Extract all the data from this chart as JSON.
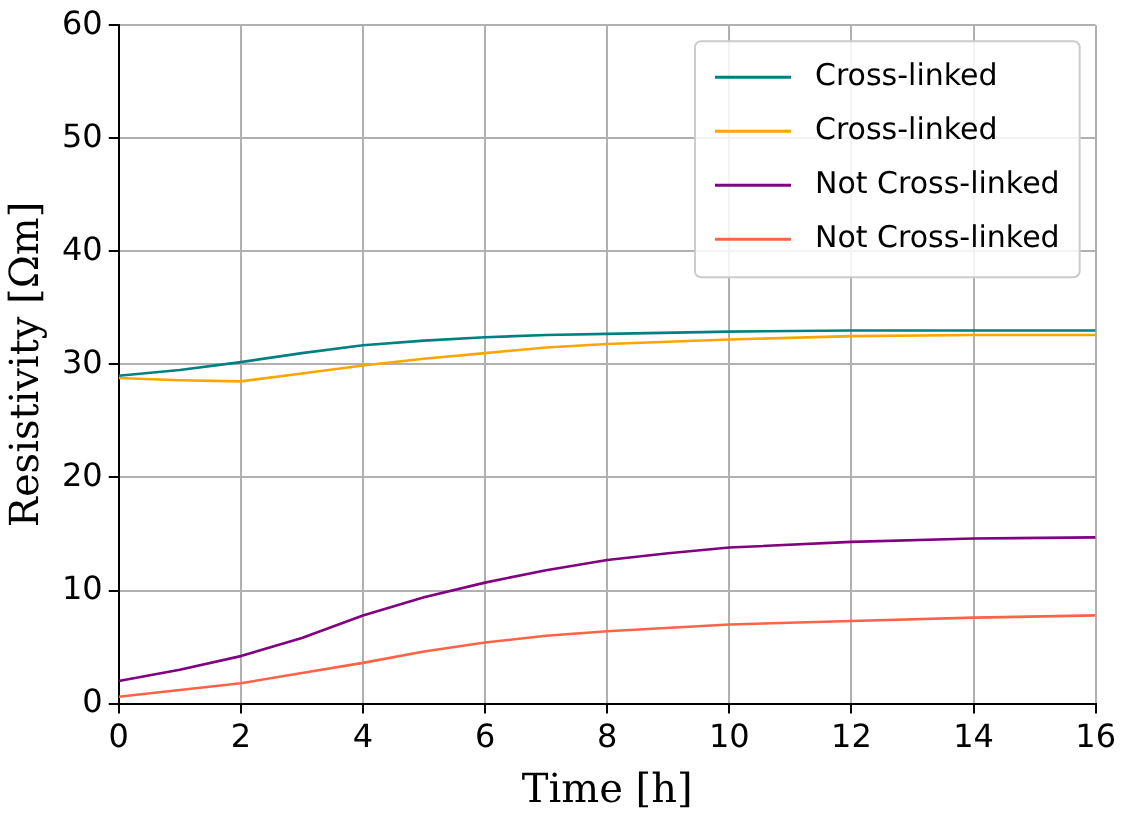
{
  "chart_data": {
    "type": "line",
    "xlabel": "Time [h]",
    "ylabel": "Resistivity [Ωm]",
    "xlim": [
      0,
      16
    ],
    "xticks": [
      0,
      2,
      4,
      6,
      8,
      10,
      12,
      14,
      16
    ],
    "ylim": [
      0,
      60
    ],
    "yticks": [
      0,
      10,
      20,
      30,
      40,
      50,
      60
    ],
    "grid": true,
    "legend": "top right",
    "marker": "none",
    "series": [
      {
        "name": "Cross-linked",
        "color": "#008080",
        "x": [
          0,
          1,
          2,
          3,
          4,
          5,
          6,
          7,
          8,
          10,
          12,
          14,
          16
        ],
        "values": [
          29,
          29.5,
          30.2,
          31,
          31.7,
          32.1,
          32.4,
          32.6,
          32.7,
          32.9,
          33,
          33,
          33
        ]
      },
      {
        "name": "Cross-linked",
        "color": "#ffa500",
        "x": [
          0,
          1,
          2,
          3,
          4,
          5,
          6,
          7,
          8,
          10,
          12,
          14,
          16
        ],
        "values": [
          28.8,
          28.6,
          28.5,
          29.2,
          29.9,
          30.5,
          31,
          31.5,
          31.8,
          32.2,
          32.5,
          32.6,
          32.6
        ]
      },
      {
        "name": "Not Cross-linked",
        "color": "#800080",
        "x": [
          0,
          1,
          2,
          3,
          4,
          5,
          6,
          7,
          8,
          9,
          10,
          12,
          14,
          16
        ],
        "values": [
          2,
          3,
          4.2,
          5.8,
          7.8,
          9.4,
          10.7,
          11.8,
          12.7,
          13.3,
          13.8,
          14.3,
          14.6,
          14.7
        ]
      },
      {
        "name": "Not Cross-linked",
        "color": "#ff6347",
        "x": [
          0,
          1,
          2,
          3,
          4,
          5,
          6,
          7,
          8,
          10,
          12,
          14,
          16
        ],
        "values": [
          0.6,
          1.2,
          1.8,
          2.7,
          3.6,
          4.6,
          5.4,
          6,
          6.4,
          7,
          7.3,
          7.6,
          7.8
        ]
      }
    ]
  }
}
